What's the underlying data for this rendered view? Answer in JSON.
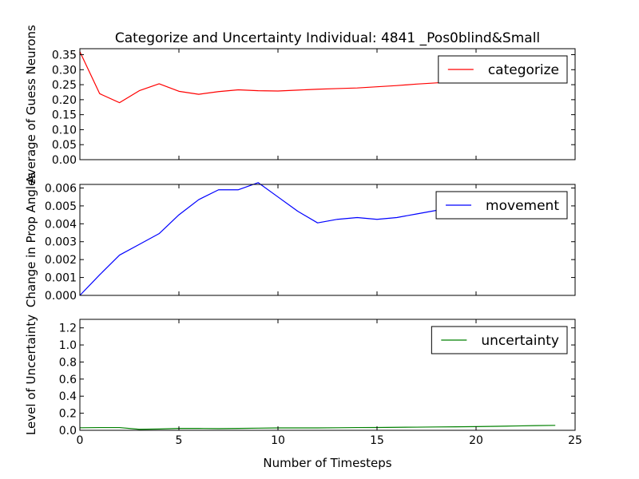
{
  "figure": {
    "title": "Categorize and Uncertainty Individual: 4841 _Pos0blind&Small",
    "xlabel": "Number of Timesteps"
  },
  "chart_data": [
    {
      "type": "line",
      "ylabel": "Average of Guess Neurons",
      "xlim": [
        0,
        25
      ],
      "ylim": [
        0,
        0.37
      ],
      "xticks": [
        "0",
        "5",
        "10",
        "15",
        "20",
        "25"
      ],
      "yticks": [
        "0.00",
        "0.05",
        "0.10",
        "0.15",
        "0.20",
        "0.25",
        "0.30",
        "0.35"
      ],
      "legend_position": "top-right",
      "series": [
        {
          "name": "categorize",
          "color": "#ff0000",
          "x": [
            0,
            1,
            2,
            3,
            4,
            5,
            6,
            7,
            8,
            9,
            10,
            11,
            12,
            13,
            14,
            15,
            16,
            17,
            18,
            19,
            20,
            21,
            22,
            23,
            24
          ],
          "y": [
            0.36,
            0.22,
            0.19,
            0.23,
            0.253,
            0.228,
            0.218,
            0.227,
            0.233,
            0.23,
            0.229,
            0.232,
            0.235,
            0.237,
            0.239,
            0.243,
            0.247,
            0.252,
            0.256,
            0.26,
            0.263,
            0.266,
            0.268,
            0.27,
            0.272
          ]
        }
      ]
    },
    {
      "type": "line",
      "ylabel": "Change in Prop Angles",
      "xlim": [
        0,
        25
      ],
      "ylim": [
        0,
        0.0062
      ],
      "xticks": [
        "0",
        "5",
        "10",
        "15",
        "20",
        "25"
      ],
      "yticks": [
        "0.000",
        "0.001",
        "0.002",
        "0.003",
        "0.004",
        "0.005",
        "0.006"
      ],
      "legend_position": "top-right",
      "series": [
        {
          "name": "movement",
          "color": "#0000ff",
          "x": [
            0,
            1,
            2,
            3,
            4,
            5,
            6,
            7,
            8,
            9,
            10,
            11,
            12,
            13,
            14,
            15,
            16,
            17,
            18,
            19,
            20,
            21,
            22,
            23,
            24
          ],
          "y": [
            0.0,
            0.00115,
            0.00225,
            0.00285,
            0.00345,
            0.0045,
            0.00535,
            0.0059,
            0.0059,
            0.0063,
            0.0055,
            0.0047,
            0.00405,
            0.00425,
            0.00435,
            0.00425,
            0.00435,
            0.00455,
            0.00475,
            0.0049,
            0.005,
            0.0051,
            0.0052,
            0.0053,
            0.0054
          ]
        }
      ]
    },
    {
      "type": "line",
      "ylabel": "Level of Uncertainty",
      "xlim": [
        0,
        25
      ],
      "ylim": [
        0,
        1.3
      ],
      "xticks": [
        "0",
        "5",
        "10",
        "15",
        "20",
        "25"
      ],
      "yticks": [
        "0.0",
        "0.2",
        "0.4",
        "0.6",
        "0.8",
        "1.0",
        "1.2"
      ],
      "legend_position": "top-right",
      "series": [
        {
          "name": "uncertainty",
          "color": "#008000",
          "x": [
            0,
            1,
            2,
            3,
            4,
            5,
            6,
            7,
            8,
            9,
            10,
            11,
            12,
            13,
            14,
            15,
            16,
            17,
            18,
            19,
            20,
            21,
            22,
            23,
            24
          ],
          "y": [
            0.03,
            0.032,
            0.032,
            0.012,
            0.015,
            0.022,
            0.022,
            0.02,
            0.022,
            0.025,
            0.028,
            0.028,
            0.028,
            0.03,
            0.032,
            0.033,
            0.035,
            0.037,
            0.039,
            0.041,
            0.043,
            0.047,
            0.051,
            0.055,
            0.058
          ]
        }
      ]
    }
  ]
}
